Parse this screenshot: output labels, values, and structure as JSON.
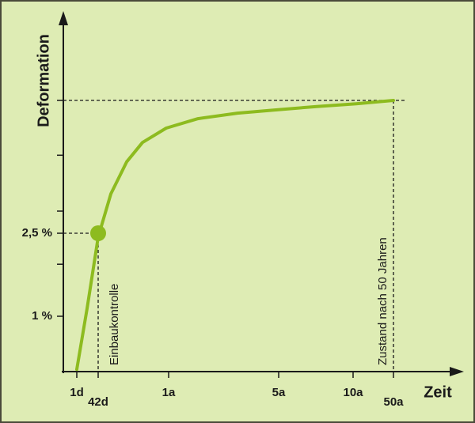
{
  "chart_data": {
    "type": "line",
    "x_label": "Zeit",
    "y_label": "Deformation",
    "xlim": [
      0,
      100
    ],
    "ylim": [
      0,
      6.4
    ],
    "xticks": [
      {
        "value": 3.4,
        "label": "1d"
      },
      {
        "value": 8.8,
        "label": "42d"
      },
      {
        "value": 26.6,
        "label": "1a"
      },
      {
        "value": 54.4,
        "label": "5a"
      },
      {
        "value": 73.2,
        "label": "10a"
      },
      {
        "value": 83.4,
        "label": "50a"
      }
    ],
    "yticks": [
      {
        "value": 1,
        "label": "1 %"
      },
      {
        "value": 2.5,
        "label": "2,5 %"
      }
    ],
    "yticks_unlabeled": [
      1.94,
      2.9,
      3.91,
      4.9
    ],
    "color": "#8dbb1f",
    "x": [
      3.4,
      6,
      8.8,
      12,
      16,
      20,
      26,
      34,
      44,
      54,
      64,
      74,
      83.4
    ],
    "values": [
      0.04,
      1.14,
      2.43,
      3.21,
      3.79,
      4.14,
      4.4,
      4.57,
      4.67,
      4.73,
      4.79,
      4.84,
      4.9
    ],
    "annotations": [
      {
        "text": "Einbaukontrolle",
        "x": 8.8,
        "y": 2.5
      },
      {
        "text": "Zustand nach 50 Jahren",
        "x": 83.4,
        "y": 4.9
      }
    ]
  }
}
